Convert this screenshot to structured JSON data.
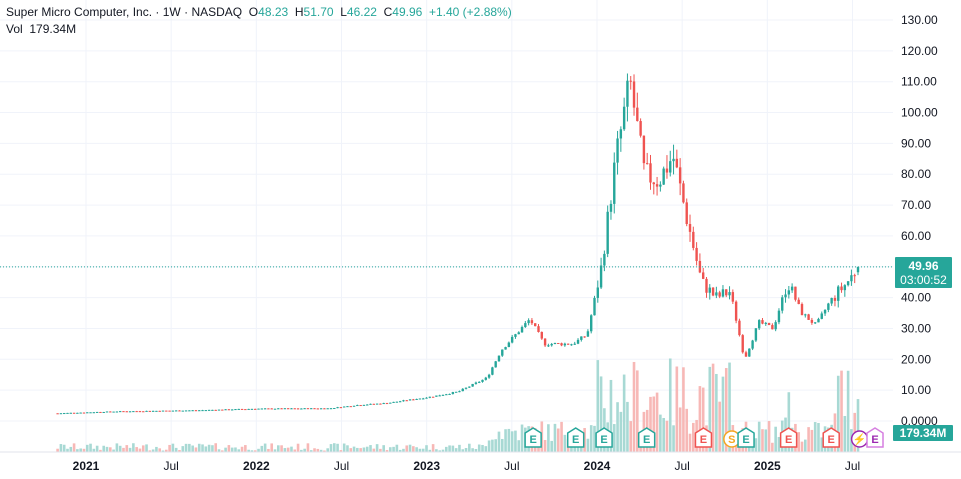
{
  "legend": {
    "symbol": "Super Micro Computer, Inc.",
    "interval": "1W",
    "exchange": "NASDAQ",
    "open_label": "O",
    "open": "48.23",
    "high_label": "H",
    "high": "51.70",
    "low_label": "L",
    "low": "46.22",
    "close_label": "C",
    "close": "49.96",
    "change": "+1.40 (+2.88%)",
    "vol_label": "Vol",
    "vol_value": "179.34M"
  },
  "price_tag": {
    "price": "49.96",
    "countdown": "03:00:52"
  },
  "volume_tag": "179.34M",
  "colors": {
    "up": "#26a69a",
    "down": "#ef5350",
    "volume_up": "#a8d9d4",
    "volume_down": "#f7b8b6",
    "grid": "#f0f3fa",
    "earnings": "#26a69a",
    "earnings_down": "#ef5350",
    "dividend": "#f5a623",
    "split": "#9c27b0"
  },
  "chart_data": {
    "type": "candlestick",
    "title": "Super Micro Computer, Inc. · 1W · NASDAQ",
    "y_ticks": [
      "130.00",
      "120.00",
      "110.00",
      "100.00",
      "90.00",
      "80.00",
      "70.00",
      "60.00",
      "50.00",
      "40.00",
      "30.00",
      "20.00",
      "10.00",
      "0.0000"
    ],
    "ylim": [
      0,
      130
    ],
    "x_ticks": [
      {
        "label": "2021",
        "year": true
      },
      {
        "label": "Jul",
        "year": false
      },
      {
        "label": "2022",
        "year": true
      },
      {
        "label": "Jul",
        "year": false
      },
      {
        "label": "2023",
        "year": true
      },
      {
        "label": "Jul",
        "year": false
      },
      {
        "label": "2024",
        "year": true
      },
      {
        "label": "Jul",
        "year": false
      },
      {
        "label": "2025",
        "year": true
      },
      {
        "label": "Jul",
        "year": false
      }
    ],
    "last_price": 49.96,
    "price_keypoints": [
      [
        "2020-11",
        2.5
      ],
      [
        "2021-03",
        3.1
      ],
      [
        "2021-09",
        3.5
      ],
      [
        "2022-01",
        4.0
      ],
      [
        "2022-06",
        4.1
      ],
      [
        "2022-08",
        5.2
      ],
      [
        "2022-10",
        5.8
      ],
      [
        "2023-01",
        7.8
      ],
      [
        "2023-03",
        9.5
      ],
      [
        "2023-05",
        14.0
      ],
      [
        "2023-06",
        23.0
      ],
      [
        "2023-08",
        33.0
      ],
      [
        "2023-09",
        25.0
      ],
      [
        "2023-11",
        25.0
      ],
      [
        "2023-12",
        28.0
      ],
      [
        "2024-01",
        50.0
      ],
      [
        "2024-02",
        85.0
      ],
      [
        "2024-03",
        110.0
      ],
      [
        "2024-04",
        80.0
      ],
      [
        "2024-05",
        78.0
      ],
      [
        "2024-06",
        86.0
      ],
      [
        "2024-07",
        65.0
      ],
      [
        "2024-08",
        45.0
      ],
      [
        "2024-09",
        40.0
      ],
      [
        "2024-10",
        42.0
      ],
      [
        "2024-11",
        20.0
      ],
      [
        "2024-12",
        32.0
      ],
      [
        "2025-01",
        30.0
      ],
      [
        "2025-02",
        45.0
      ],
      [
        "2025-03",
        35.0
      ],
      [
        "2025-04",
        31.0
      ],
      [
        "2025-05",
        39.0
      ],
      [
        "2025-06",
        44.0
      ],
      [
        "2025-07",
        49.96
      ]
    ],
    "volume_range_M": [
      0,
      400
    ],
    "events": [
      {
        "type": "earnings",
        "label": "E",
        "date": "2023-08"
      },
      {
        "type": "earnings",
        "label": "E",
        "date": "2023-11"
      },
      {
        "type": "earnings",
        "label": "E",
        "date": "2024-01"
      },
      {
        "type": "earnings",
        "label": "E",
        "date": "2024-04"
      },
      {
        "type": "earnings",
        "label": "E",
        "date": "2024-08",
        "status": "down"
      },
      {
        "type": "split",
        "label": "S",
        "date": "2024-10"
      },
      {
        "type": "earnings",
        "label": "E",
        "date": "2024-11"
      },
      {
        "type": "earnings",
        "label": "E",
        "date": "2025-02",
        "status": "down"
      },
      {
        "type": "earnings",
        "label": "E",
        "date": "2025-05",
        "status": "down"
      },
      {
        "type": "dividend",
        "label": "⚡",
        "date": "2025-07"
      },
      {
        "type": "earnings",
        "label": "E",
        "date": "2025-08",
        "status": "upcoming"
      }
    ]
  }
}
